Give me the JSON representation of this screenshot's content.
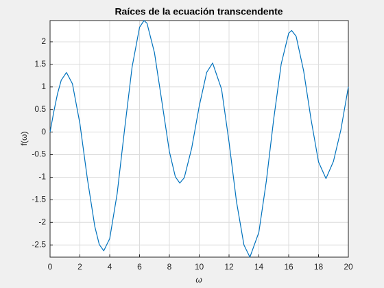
{
  "chart_data": {
    "type": "line",
    "title": "Raíces de la ecuación transcendente",
    "x_label": "ω",
    "y_label": "f(ω)",
    "x": [
      0,
      0.25,
      0.5,
      0.75,
      1.1,
      1.5,
      2.0,
      2.5,
      3.0,
      3.3,
      3.6,
      4.0,
      4.5,
      5.0,
      5.5,
      6.0,
      6.3,
      6.5,
      7.0,
      7.5,
      8.0,
      8.4,
      8.7,
      9.0,
      9.5,
      10.0,
      10.5,
      10.9,
      11.5,
      12.0,
      12.5,
      13.0,
      13.4,
      14.0,
      14.5,
      15.0,
      15.5,
      16.0,
      16.2,
      16.5,
      17.0,
      17.5,
      18.0,
      18.5,
      19.0,
      19.5,
      20.0
    ],
    "series": [
      {
        "name": "f",
        "color": "#0072bd",
        "values": [
          0,
          0.45,
          0.85,
          1.15,
          1.32,
          1.07,
          0.19,
          -1.03,
          -2.09,
          -2.49,
          -2.63,
          -2.36,
          -1.36,
          0.07,
          1.44,
          2.32,
          2.47,
          2.41,
          1.76,
          0.67,
          -0.43,
          -0.99,
          -1.13,
          -1.01,
          -0.35,
          0.57,
          1.32,
          1.53,
          0.95,
          -0.22,
          -1.54,
          -2.5,
          -2.77,
          -2.22,
          -1.09,
          0.3,
          1.51,
          2.19,
          2.25,
          2.12,
          1.36,
          0.28,
          -0.66,
          -1.03,
          -0.65,
          0.05,
          1.0
        ]
      }
    ],
    "xlim": [
      0,
      20
    ],
    "xticks": [
      0,
      2,
      4,
      6,
      8,
      10,
      12,
      14,
      16,
      18,
      20
    ],
    "ylim": [
      -2.77,
      2.47
    ],
    "yticks": [
      -2.5,
      -2,
      -1.5,
      -1,
      -0.5,
      0,
      0.5,
      1,
      1.5,
      2
    ],
    "grid": true
  }
}
